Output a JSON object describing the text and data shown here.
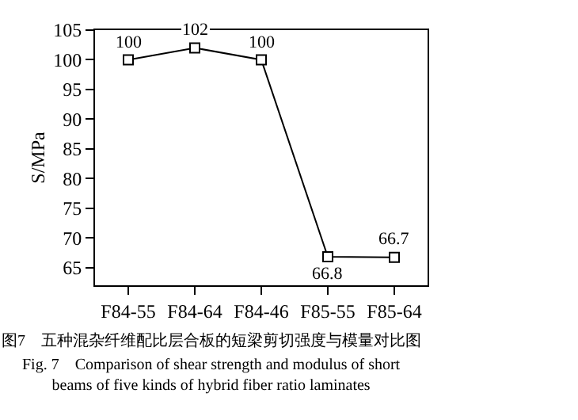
{
  "chart_data": {
    "type": "line",
    "ylabel": "S/MPa",
    "categories": [
      "F84-55",
      "F84-64",
      "F84-46",
      "F85-55",
      "F85-64"
    ],
    "series": [
      {
        "color": "#000000",
        "values": [
          100,
          102,
          100,
          66.8,
          66.7
        ]
      }
    ],
    "ylim": [
      62,
      105
    ],
    "yticks": [
      65,
      70,
      75,
      80,
      85,
      90,
      95,
      100,
      105
    ],
    "data_labels": true,
    "marker": "square",
    "line_style": "solid",
    "grid": false,
    "legend": false,
    "annotations": [
      "图7　五种混杂纤维配比层合板的短梁剪切强度与模量对比图",
      "Fig. 7　Comparison of shear strength and modulus of short beams of five kinds of hybrid fiber ratio laminates"
    ]
  }
}
